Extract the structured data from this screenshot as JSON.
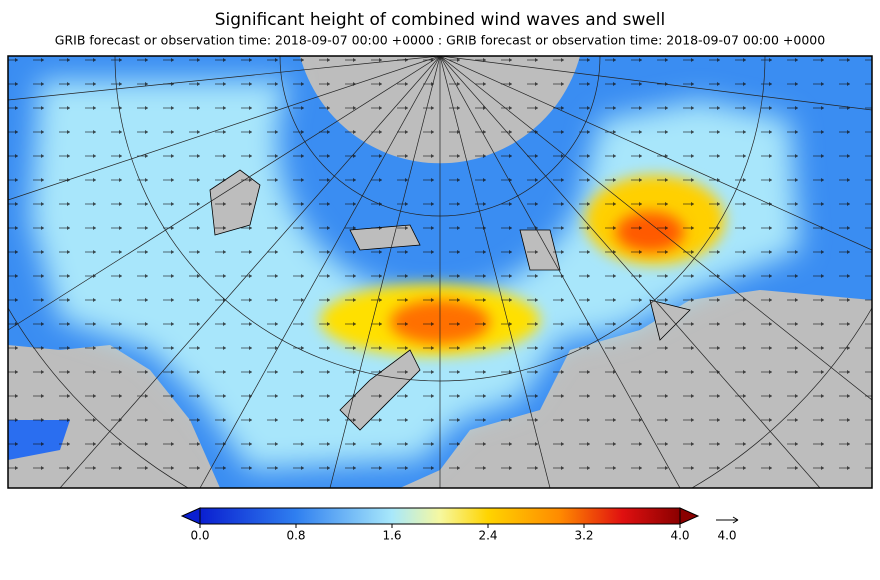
{
  "header": {
    "title": "Significant height of combined wind waves and swell",
    "subtitle": "GRIB forecast or observation time: 2018-09-07 00:00 +0000 : GRIB forecast or observation time: 2018-09-07 00:00 +0000"
  },
  "colorbar": {
    "ticks": [
      {
        "value": 0,
        "label": "0.0"
      },
      {
        "value": 0.8,
        "label": "0.8"
      },
      {
        "value": 1.6,
        "label": "1.6"
      },
      {
        "value": 2.4,
        "label": "2.4"
      },
      {
        "value": 3.2,
        "label": "3.2"
      },
      {
        "value": 4,
        "label": "4.0"
      }
    ]
  },
  "vector_scale": {
    "value": 4,
    "label": "4.0"
  }
}
